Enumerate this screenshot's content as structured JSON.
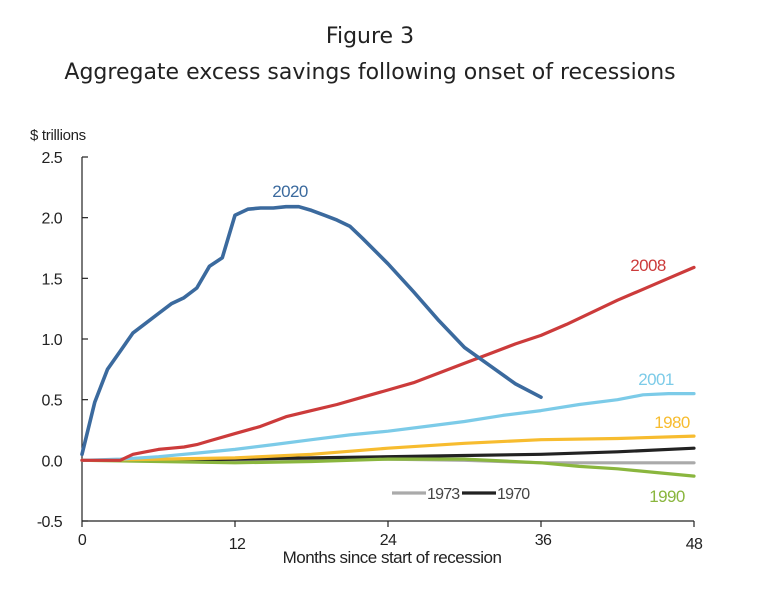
{
  "chart_data": {
    "type": "line",
    "figure_label": "Figure 3",
    "title": "Aggregate excess savings following onset of recessions",
    "ylabel": "$ trillions",
    "xlabel": "Months since start of recession",
    "xlim": [
      0,
      48
    ],
    "ylim": [
      -0.5,
      2.5
    ],
    "x_ticks": [
      0,
      12,
      24,
      36,
      48
    ],
    "x_tick_labels": [
      "0",
      "12",
      "24",
      "36",
      "48"
    ],
    "y_ticks": [
      -0.5,
      0.0,
      0.5,
      1.0,
      1.5,
      2.0,
      2.5
    ],
    "y_tick_labels": [
      "-0.5",
      "0.0",
      "0.5",
      "1.0",
      "1.5",
      "2.0",
      "2.5"
    ],
    "grid": false,
    "legend": {
      "placement": "bottom-center",
      "entries": [
        {
          "name": "1973",
          "color": "#aaaaaa"
        },
        {
          "name": "1970",
          "color": "#222222"
        }
      ]
    },
    "series": [
      {
        "name": "1973",
        "color": "#aaaaaa",
        "label_inline": false,
        "x": [
          0,
          6,
          12,
          18,
          24,
          30,
          36,
          42,
          48
        ],
        "y": [
          0.0,
          0.0,
          -0.01,
          0.0,
          0.01,
          0.0,
          -0.02,
          -0.02,
          -0.02
        ]
      },
      {
        "name": "1970",
        "color": "#222222",
        "label_inline": false,
        "x": [
          0,
          6,
          12,
          18,
          24,
          30,
          36,
          42,
          48
        ],
        "y": [
          0.0,
          0.0,
          0.01,
          0.02,
          0.03,
          0.04,
          0.05,
          0.07,
          0.1
        ]
      },
      {
        "name": "1990",
        "color": "#8ab63e",
        "label_inline": true,
        "x": [
          0,
          6,
          12,
          18,
          24,
          30,
          36,
          39,
          42,
          45,
          48
        ],
        "y": [
          0.0,
          -0.01,
          -0.02,
          -0.01,
          0.01,
          0.01,
          -0.02,
          -0.05,
          -0.07,
          -0.1,
          -0.13
        ]
      },
      {
        "name": "1980",
        "color": "#f7bc2f",
        "label_inline": true,
        "x": [
          0,
          6,
          12,
          18,
          24,
          30,
          36,
          42,
          48
        ],
        "y": [
          0.0,
          0.01,
          0.02,
          0.05,
          0.1,
          0.14,
          0.17,
          0.18,
          0.2
        ]
      },
      {
        "name": "2001",
        "color": "#7ccbe8",
        "label_inline": true,
        "x": [
          0,
          3,
          6,
          9,
          12,
          15,
          18,
          21,
          24,
          27,
          30,
          33,
          36,
          39,
          42,
          44,
          46,
          48
        ],
        "y": [
          0.0,
          0.01,
          0.03,
          0.06,
          0.09,
          0.13,
          0.17,
          0.21,
          0.24,
          0.28,
          0.32,
          0.37,
          0.41,
          0.46,
          0.5,
          0.54,
          0.55,
          0.55
        ]
      },
      {
        "name": "2008",
        "color": "#cc3b3b",
        "label_inline": true,
        "x": [
          0,
          3,
          4,
          5,
          6,
          7,
          8,
          9,
          10,
          12,
          14,
          16,
          18,
          20,
          22,
          24,
          26,
          28,
          30,
          32,
          34,
          36,
          38,
          40,
          42,
          44,
          46,
          48
        ],
        "y": [
          0.0,
          0.0,
          0.05,
          0.07,
          0.09,
          0.1,
          0.11,
          0.13,
          0.16,
          0.22,
          0.28,
          0.36,
          0.41,
          0.46,
          0.52,
          0.58,
          0.64,
          0.72,
          0.8,
          0.88,
          0.96,
          1.03,
          1.12,
          1.22,
          1.32,
          1.41,
          1.5,
          1.59
        ]
      },
      {
        "name": "2020",
        "color": "#3b6a9e",
        "label_inline": true,
        "x": [
          0,
          1,
          2,
          3,
          4,
          5,
          6,
          7,
          8,
          9,
          10,
          11,
          12,
          13,
          14,
          15,
          16,
          17,
          18,
          19,
          20,
          21,
          22,
          24,
          26,
          28,
          30,
          32,
          34,
          36
        ],
        "y": [
          0.05,
          0.48,
          0.75,
          0.9,
          1.05,
          1.13,
          1.21,
          1.29,
          1.34,
          1.42,
          1.6,
          1.67,
          2.02,
          2.07,
          2.08,
          2.08,
          2.09,
          2.09,
          2.06,
          2.02,
          1.98,
          1.93,
          1.83,
          1.62,
          1.39,
          1.15,
          0.93,
          0.78,
          0.63,
          0.52
        ]
      }
    ]
  }
}
